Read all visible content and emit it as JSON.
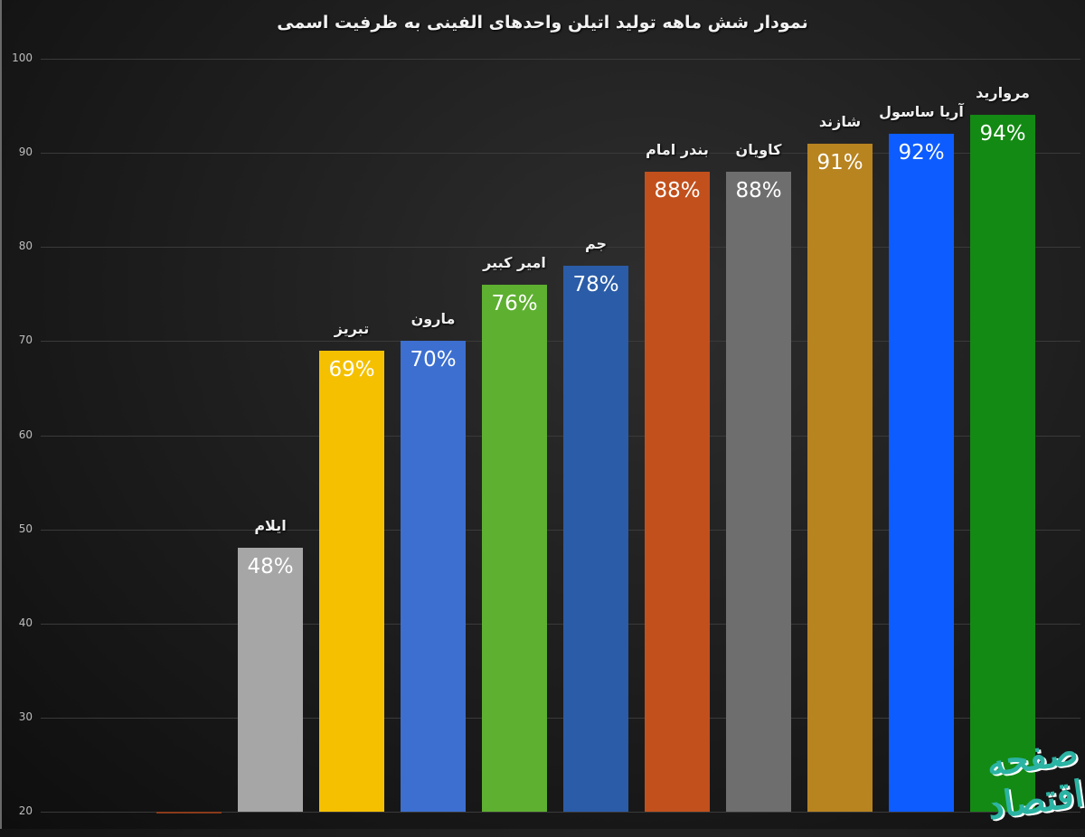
{
  "chart_data": {
    "type": "bar",
    "title": "نمودار شش ماهه تولید اتیلن واحدهای الفینی به ظرفیت اسمی",
    "xlabel": "",
    "ylabel": "",
    "ylim": [
      20,
      100
    ],
    "yticks": [
      "100",
      "90",
      "80",
      "70",
      "60",
      "50",
      "40",
      "30",
      "20"
    ],
    "grid": true,
    "legend": null,
    "categories": [
      "",
      "ایلام",
      "تبریز",
      "مارون",
      "امیر کبیر",
      "جم",
      "بندر امام",
      "کاویان",
      "شازند",
      "آریا ساسول",
      "مروارید"
    ],
    "values": [
      20,
      48,
      69,
      70,
      76,
      78,
      88,
      88,
      91,
      92,
      94
    ],
    "value_labels": [
      "",
      "48%",
      "69%",
      "70%",
      "76%",
      "78%",
      "88%",
      "88%",
      "91%",
      "92%",
      "94%"
    ],
    "colors": [
      "#8a3a1a",
      "#a6a6a6",
      "#f5c000",
      "#3c6fd0",
      "#5eb030",
      "#2a5ca8",
      "#c2501c",
      "#6e6e6e",
      "#b88420",
      "#0d5cff",
      "#138a13"
    ]
  },
  "watermark": "صفحه اقتصاد"
}
